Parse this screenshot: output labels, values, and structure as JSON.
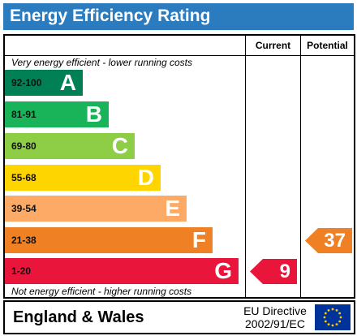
{
  "title": "Energy Efficiency Rating",
  "columns": {
    "current": "Current",
    "potential": "Potential"
  },
  "top_note": "Very energy efficient - lower running costs",
  "bottom_note": "Not energy efficient - higher running costs",
  "bands": [
    {
      "range": "92-100",
      "letter": "A",
      "color": "#008054"
    },
    {
      "range": "81-91",
      "letter": "B",
      "color": "#19b459"
    },
    {
      "range": "69-80",
      "letter": "C",
      "color": "#8dce46"
    },
    {
      "range": "55-68",
      "letter": "D",
      "color": "#ffd500"
    },
    {
      "range": "39-54",
      "letter": "E",
      "color": "#fcaa65"
    },
    {
      "range": "21-38",
      "letter": "F",
      "color": "#ef8023"
    },
    {
      "range": "1-20",
      "letter": "G",
      "color": "#e9153b"
    }
  ],
  "current": {
    "value": "9",
    "band": "G",
    "color": "#e9153b"
  },
  "potential": {
    "value": "37",
    "band": "F",
    "color": "#ef8023"
  },
  "footer": {
    "region": "England & Wales",
    "directive_line1": "EU Directive",
    "directive_line2": "2002/91/EC",
    "flag_icon": "eu-flag-icon",
    "flag_color": "#003399",
    "star_color": "#ffcc00"
  }
}
